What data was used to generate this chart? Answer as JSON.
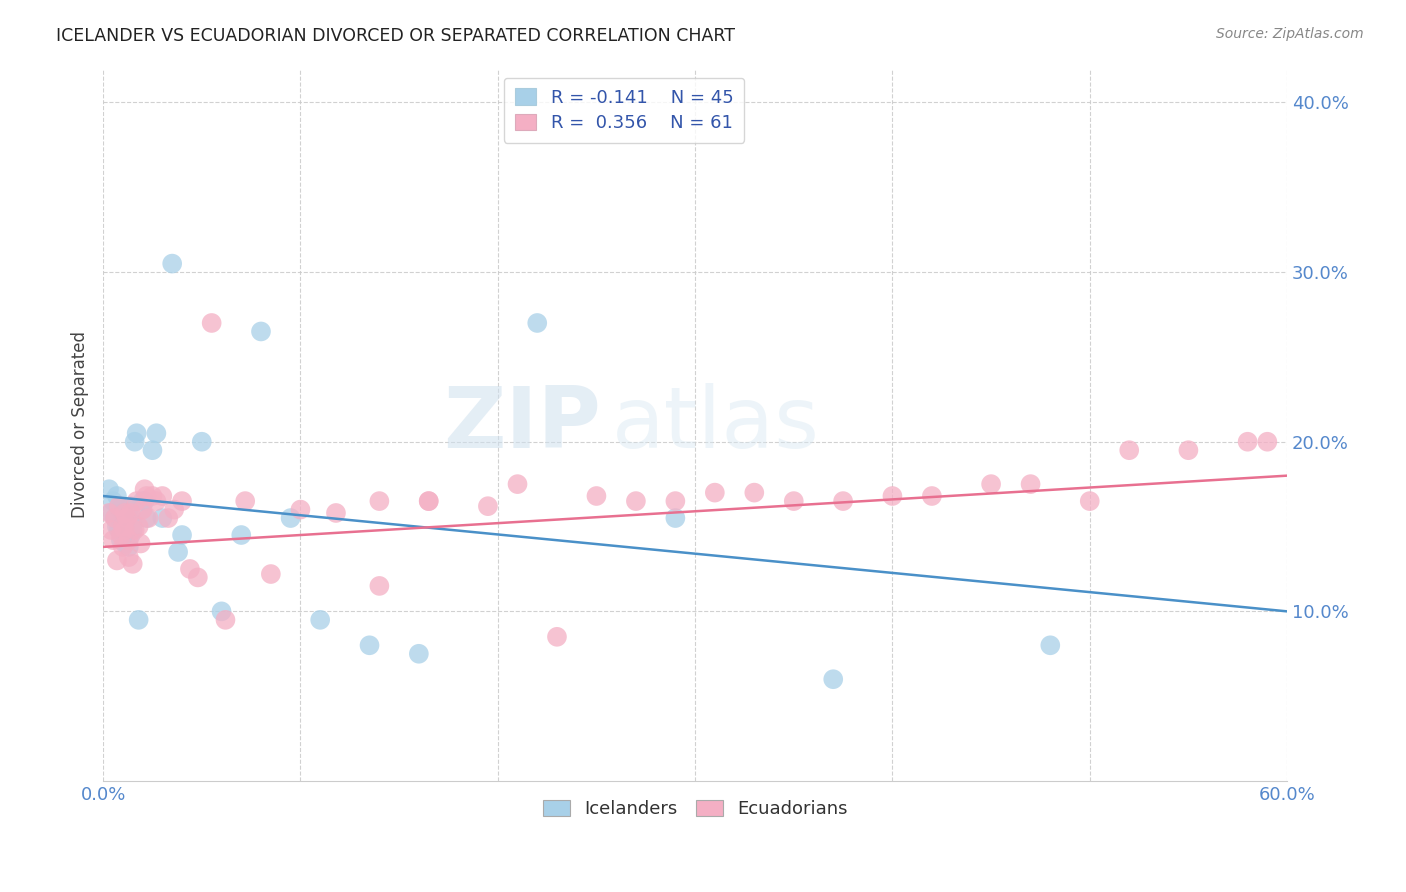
{
  "title": "ICELANDER VS ECUADORIAN DIVORCED OR SEPARATED CORRELATION CHART",
  "source": "Source: ZipAtlas.com",
  "ylabel": "Divorced or Separated",
  "xlim": [
    0.0,
    0.6
  ],
  "ylim": [
    0.0,
    0.42
  ],
  "yticks": [
    0.1,
    0.2,
    0.3,
    0.4
  ],
  "ytick_labels": [
    "10.0%",
    "20.0%",
    "30.0%",
    "40.0%"
  ],
  "icelander_color": "#a8d0e8",
  "ecuadorian_color": "#f4afc4",
  "trendline_blue": "#4a90c8",
  "trendline_pink": "#e87090",
  "watermark_zip": "ZIP",
  "watermark_atlas": "atlas",
  "icelander_x": [
    0.003,
    0.004,
    0.005,
    0.006,
    0.007,
    0.007,
    0.008,
    0.008,
    0.009,
    0.009,
    0.01,
    0.01,
    0.011,
    0.011,
    0.012,
    0.013,
    0.013,
    0.014,
    0.014,
    0.015,
    0.015,
    0.016,
    0.017,
    0.018,
    0.02,
    0.021,
    0.022,
    0.025,
    0.027,
    0.03,
    0.035,
    0.038,
    0.04,
    0.05,
    0.06,
    0.07,
    0.08,
    0.095,
    0.11,
    0.135,
    0.16,
    0.22,
    0.29,
    0.37,
    0.48
  ],
  "icelander_y": [
    0.172,
    0.158,
    0.165,
    0.155,
    0.15,
    0.168,
    0.148,
    0.155,
    0.142,
    0.16,
    0.152,
    0.158,
    0.14,
    0.148,
    0.155,
    0.16,
    0.138,
    0.145,
    0.162,
    0.148,
    0.152,
    0.2,
    0.205,
    0.095,
    0.165,
    0.165,
    0.155,
    0.195,
    0.205,
    0.155,
    0.305,
    0.135,
    0.145,
    0.2,
    0.1,
    0.145,
    0.265,
    0.155,
    0.095,
    0.08,
    0.075,
    0.27,
    0.155,
    0.06,
    0.08
  ],
  "ecuadorian_x": [
    0.003,
    0.004,
    0.005,
    0.006,
    0.007,
    0.008,
    0.009,
    0.01,
    0.01,
    0.011,
    0.011,
    0.012,
    0.013,
    0.013,
    0.014,
    0.015,
    0.016,
    0.017,
    0.018,
    0.019,
    0.02,
    0.021,
    0.022,
    0.023,
    0.025,
    0.027,
    0.03,
    0.033,
    0.036,
    0.04,
    0.044,
    0.048,
    0.055,
    0.062,
    0.072,
    0.085,
    0.1,
    0.118,
    0.14,
    0.165,
    0.195,
    0.23,
    0.27,
    0.31,
    0.35,
    0.4,
    0.45,
    0.5,
    0.55,
    0.59,
    0.14,
    0.165,
    0.21,
    0.25,
    0.29,
    0.33,
    0.375,
    0.42,
    0.47,
    0.52,
    0.58
  ],
  "ecuadorian_y": [
    0.158,
    0.148,
    0.142,
    0.155,
    0.13,
    0.162,
    0.145,
    0.15,
    0.138,
    0.158,
    0.148,
    0.155,
    0.132,
    0.142,
    0.158,
    0.128,
    0.148,
    0.165,
    0.15,
    0.14,
    0.16,
    0.172,
    0.168,
    0.155,
    0.168,
    0.165,
    0.168,
    0.155,
    0.16,
    0.165,
    0.125,
    0.12,
    0.27,
    0.095,
    0.165,
    0.122,
    0.16,
    0.158,
    0.115,
    0.165,
    0.162,
    0.085,
    0.165,
    0.17,
    0.165,
    0.168,
    0.175,
    0.165,
    0.195,
    0.2,
    0.165,
    0.165,
    0.175,
    0.168,
    0.165,
    0.17,
    0.165,
    0.168,
    0.175,
    0.195,
    0.2
  ],
  "blue_trend_x0": 0.0,
  "blue_trend_y0": 0.168,
  "blue_trend_x1": 0.6,
  "blue_trend_y1": 0.1,
  "pink_trend_x0": 0.0,
  "pink_trend_y0": 0.138,
  "pink_trend_x1": 0.6,
  "pink_trend_y1": 0.18
}
